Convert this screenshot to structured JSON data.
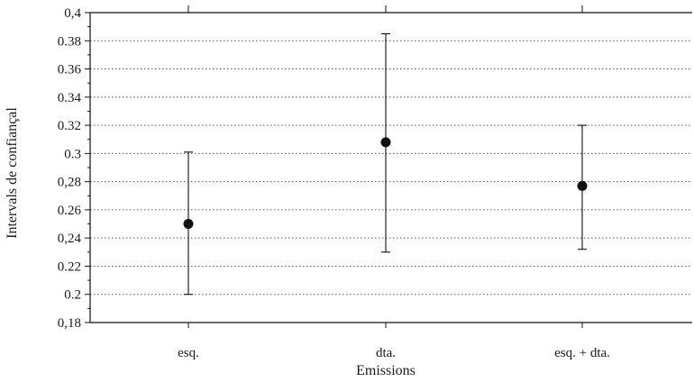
{
  "chart_data": {
    "type": "scatter",
    "subtype": "point-with-confidence-interval",
    "title": "",
    "xlabel": "Emissions",
    "ylabel": "Intervals de confiançal",
    "categories": [
      "esq.",
      "dta.",
      "esq. + dta."
    ],
    "series": [
      {
        "points": [
          {
            "category": "esq.",
            "y": 0.25,
            "low": 0.2,
            "high": 0.301
          },
          {
            "category": "dta.",
            "y": 0.308,
            "low": 0.23,
            "high": 0.385
          },
          {
            "category": "esq. + dta.",
            "y": 0.277,
            "low": 0.232,
            "high": 0.32
          }
        ]
      }
    ],
    "ylim": [
      0.18,
      0.4
    ],
    "yticks": [
      0.18,
      0.2,
      0.22,
      0.24,
      0.26,
      0.28,
      0.3,
      0.32,
      0.34,
      0.36,
      0.38,
      0.4
    ],
    "ytick_labels": [
      "0,18",
      "0.2",
      "0.22",
      "0,24",
      "0.26",
      "0,28",
      "0.3",
      "0.32",
      "0.34",
      "0.36",
      "0.38",
      "0,4"
    ],
    "grid": "horizontal-dotted",
    "legend": "none",
    "colors": {
      "marker": "#111111",
      "grid": "#555555",
      "axis": "#111111"
    }
  }
}
